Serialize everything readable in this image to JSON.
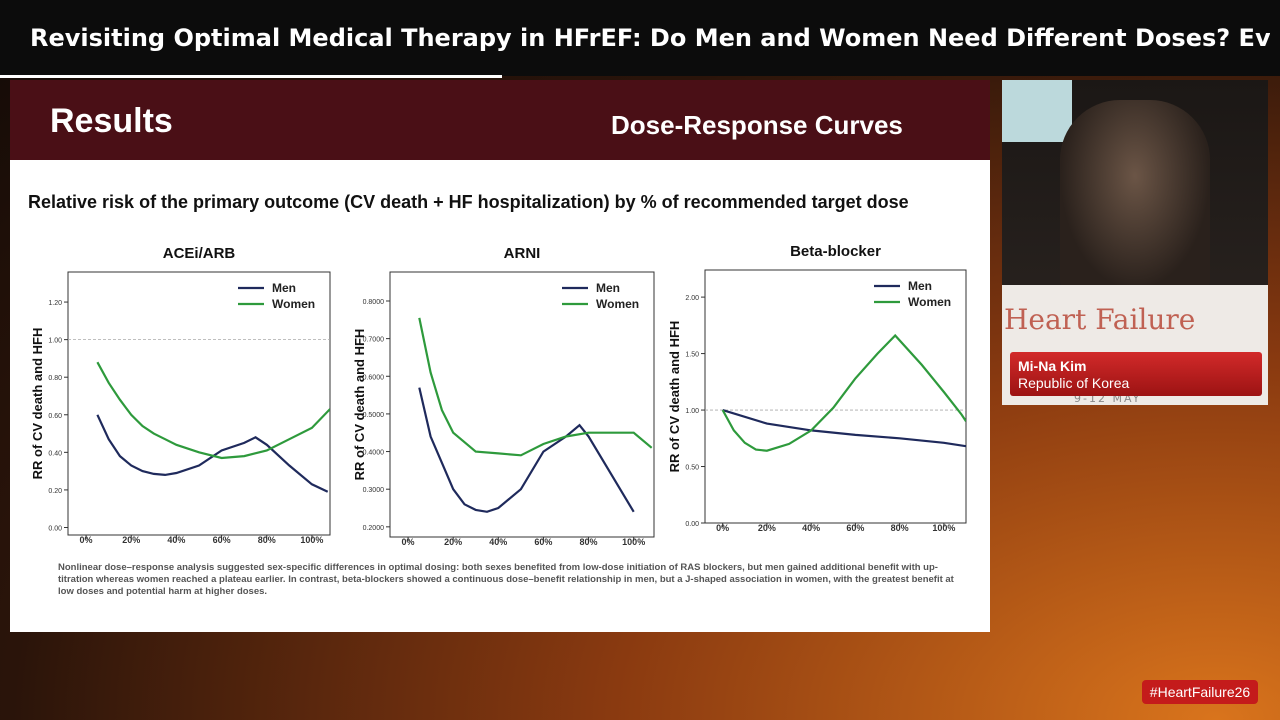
{
  "header": {
    "title": "Revisiting Optimal Medical Therapy in HFrEF: Do Men and Women Need Different Doses? Evidence f..."
  },
  "slide": {
    "heading": "Results",
    "subheading": "Dose-Response Curves",
    "caption": "Relative risk of the primary outcome (CV death + HF hospitalization) by % of recommended target dose",
    "footnote": "Nonlinear dose–response analysis suggested sex-specific differences in optimal dosing: both sexes benefited from low-dose initiation of RAS blockers, but men gained additional benefit with up-titration whereas women reached a plateau earlier. In contrast, beta-blockers showed a continuous dose–benefit relationship in men, but a J-shaped association in women, with the greatest benefit at low doses and potential harm at higher doses."
  },
  "chart_data": [
    {
      "type": "line",
      "title": "ACEi/ARB",
      "y_label": "RR of CV death and HFH",
      "legend": "upper right",
      "reference_line": 1,
      "xlim": [
        -8,
        108
      ],
      "ylim": [
        -0.04,
        1.36
      ],
      "xticks": [
        {
          "value": 0,
          "label": "0%"
        },
        {
          "value": 20,
          "label": "20%"
        },
        {
          "value": 40,
          "label": "40%"
        },
        {
          "value": 60,
          "label": "60%"
        },
        {
          "value": 80,
          "label": "80%"
        },
        {
          "value": 100,
          "label": "100%"
        }
      ],
      "yticks": [
        {
          "value": 0,
          "label": "0.00"
        },
        {
          "value": 0.2,
          "label": "0.20"
        },
        {
          "value": 0.4,
          "label": "0.40"
        },
        {
          "value": 0.6,
          "label": "0.60"
        },
        {
          "value": 0.8,
          "label": "0.80"
        },
        {
          "value": 1,
          "label": "1.00"
        },
        {
          "value": 1.2,
          "label": "1.20"
        }
      ],
      "series": [
        {
          "name": "Men",
          "color": "#1f2a5c",
          "x": [
            5,
            10,
            15,
            20,
            25,
            30,
            35,
            40,
            50,
            60,
            70,
            75,
            80,
            90,
            100,
            107
          ],
          "values": [
            0.6,
            0.47,
            0.38,
            0.33,
            0.3,
            0.285,
            0.28,
            0.29,
            0.33,
            0.41,
            0.45,
            0.48,
            0.44,
            0.33,
            0.23,
            0.19
          ]
        },
        {
          "name": "Women",
          "color": "#2e9a3c",
          "x": [
            5,
            10,
            15,
            20,
            25,
            30,
            35,
            40,
            50,
            60,
            70,
            80,
            90,
            100,
            108
          ],
          "values": [
            0.88,
            0.77,
            0.68,
            0.6,
            0.54,
            0.5,
            0.47,
            0.44,
            0.4,
            0.37,
            0.38,
            0.41,
            0.47,
            0.53,
            0.63
          ]
        }
      ]
    },
    {
      "type": "line",
      "title": "ARNI",
      "y_label": "RR of CV death and HFH",
      "legend": "upper right",
      "reference_line": null,
      "xlim": [
        -8,
        109
      ],
      "ylim": [
        0.173,
        0.877
      ],
      "xticks": [
        {
          "value": 0,
          "label": "0%"
        },
        {
          "value": 20,
          "label": "20%"
        },
        {
          "value": 40,
          "label": "40%"
        },
        {
          "value": 60,
          "label": "60%"
        },
        {
          "value": 80,
          "label": "80%"
        },
        {
          "value": 100,
          "label": "100%"
        }
      ],
      "yticks": [
        {
          "value": 0.2,
          "label": "0.2000"
        },
        {
          "value": 0.3,
          "label": "0.3000"
        },
        {
          "value": 0.4,
          "label": "0.4000"
        },
        {
          "value": 0.5,
          "label": "0.5000"
        },
        {
          "value": 0.6,
          "label": "0.6000"
        },
        {
          "value": 0.7,
          "label": "0.7000"
        },
        {
          "value": 0.8,
          "label": "0.8000"
        }
      ],
      "series": [
        {
          "name": "Men",
          "color": "#1f2a5c",
          "x": [
            5,
            10,
            15,
            20,
            25,
            30,
            35,
            40,
            50,
            60,
            70,
            76,
            80,
            90,
            100
          ],
          "values": [
            0.57,
            0.44,
            0.37,
            0.3,
            0.26,
            0.245,
            0.24,
            0.25,
            0.3,
            0.4,
            0.44,
            0.47,
            0.44,
            0.34,
            0.24
          ]
        },
        {
          "name": "Women",
          "color": "#2e9a3c",
          "x": [
            5,
            10,
            15,
            20,
            30,
            40,
            50,
            60,
            70,
            80,
            90,
            100,
            108
          ],
          "values": [
            0.755,
            0.61,
            0.51,
            0.45,
            0.4,
            0.395,
            0.39,
            0.42,
            0.44,
            0.45,
            0.45,
            0.45,
            0.41
          ]
        }
      ]
    },
    {
      "type": "line",
      "title": "Beta-blocker",
      "y_label": "RR of CV death and HFH",
      "legend": "upper right",
      "reference_line": 1,
      "xlim": [
        -8,
        110
      ],
      "ylim": [
        0,
        2.24
      ],
      "xticks": [
        {
          "value": 0,
          "label": "0%"
        },
        {
          "value": 20,
          "label": "20%"
        },
        {
          "value": 40,
          "label": "40%"
        },
        {
          "value": 60,
          "label": "60%"
        },
        {
          "value": 80,
          "label": "80%"
        },
        {
          "value": 100,
          "label": "100%"
        }
      ],
      "yticks": [
        {
          "value": 0,
          "label": "0.00"
        },
        {
          "value": 0.5,
          "label": "0.50"
        },
        {
          "value": 1,
          "label": "1.00"
        },
        {
          "value": 1.5,
          "label": "1.50"
        },
        {
          "value": 2,
          "label": "2.00"
        }
      ],
      "series": [
        {
          "name": "Men",
          "color": "#1f2a5c",
          "x": [
            0,
            20,
            40,
            60,
            80,
            100,
            110
          ],
          "values": [
            1,
            0.88,
            0.82,
            0.78,
            0.75,
            0.71,
            0.68
          ]
        },
        {
          "name": "Women",
          "color": "#2e9a3c",
          "x": [
            0,
            5,
            10,
            15,
            20,
            30,
            40,
            50,
            60,
            70,
            78,
            90,
            100,
            108,
            110
          ],
          "values": [
            1,
            0.82,
            0.71,
            0.65,
            0.64,
            0.7,
            0.82,
            1.02,
            1.28,
            1.5,
            1.66,
            1.4,
            1.16,
            0.96,
            0.9
          ]
        }
      ]
    }
  ],
  "speaker": {
    "name": "Mi-Na Kim",
    "affiliation": "Republic of Korea"
  },
  "event": {
    "brand": "Heart Failure",
    "dates": "9-12 MAY",
    "hashtag": "#HeartFailure26"
  }
}
